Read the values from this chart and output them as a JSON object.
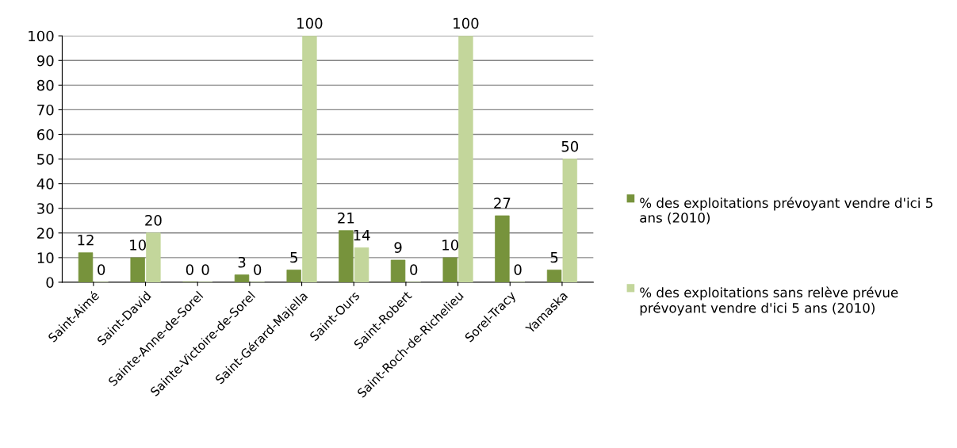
{
  "chart_data": {
    "type": "bar",
    "categories": [
      "Saint-Aimé",
      "Saint-David",
      "Sainte-Anne-de-Sorel",
      "Sainte-Victoire-de-Sorel",
      "Saint-Gérard-Majella",
      "Saint-Ours",
      "Saint-Robert",
      "Saint-Roch-de-Richelieu",
      "Sorel-Tracy",
      "Yamaska"
    ],
    "series": [
      {
        "name": "% des exploitations prévoyant vendre d'ici 5 ans (2010)",
        "color": "#77933c",
        "values": [
          12,
          10,
          0,
          3,
          5,
          21,
          9,
          10,
          27,
          5
        ]
      },
      {
        "name": "% des exploitations sans relève prévue prévoyant vendre d'ici 5 ans (2010)",
        "color": "#c3d69b",
        "values": [
          0,
          20,
          0,
          0,
          100,
          14,
          0,
          100,
          0,
          50
        ]
      }
    ],
    "ylim": [
      0,
      100
    ],
    "yticks": [
      0,
      10,
      20,
      30,
      40,
      50,
      60,
      70,
      80,
      90,
      100
    ],
    "grid": "y",
    "legend": "right",
    "data_labels": true
  }
}
